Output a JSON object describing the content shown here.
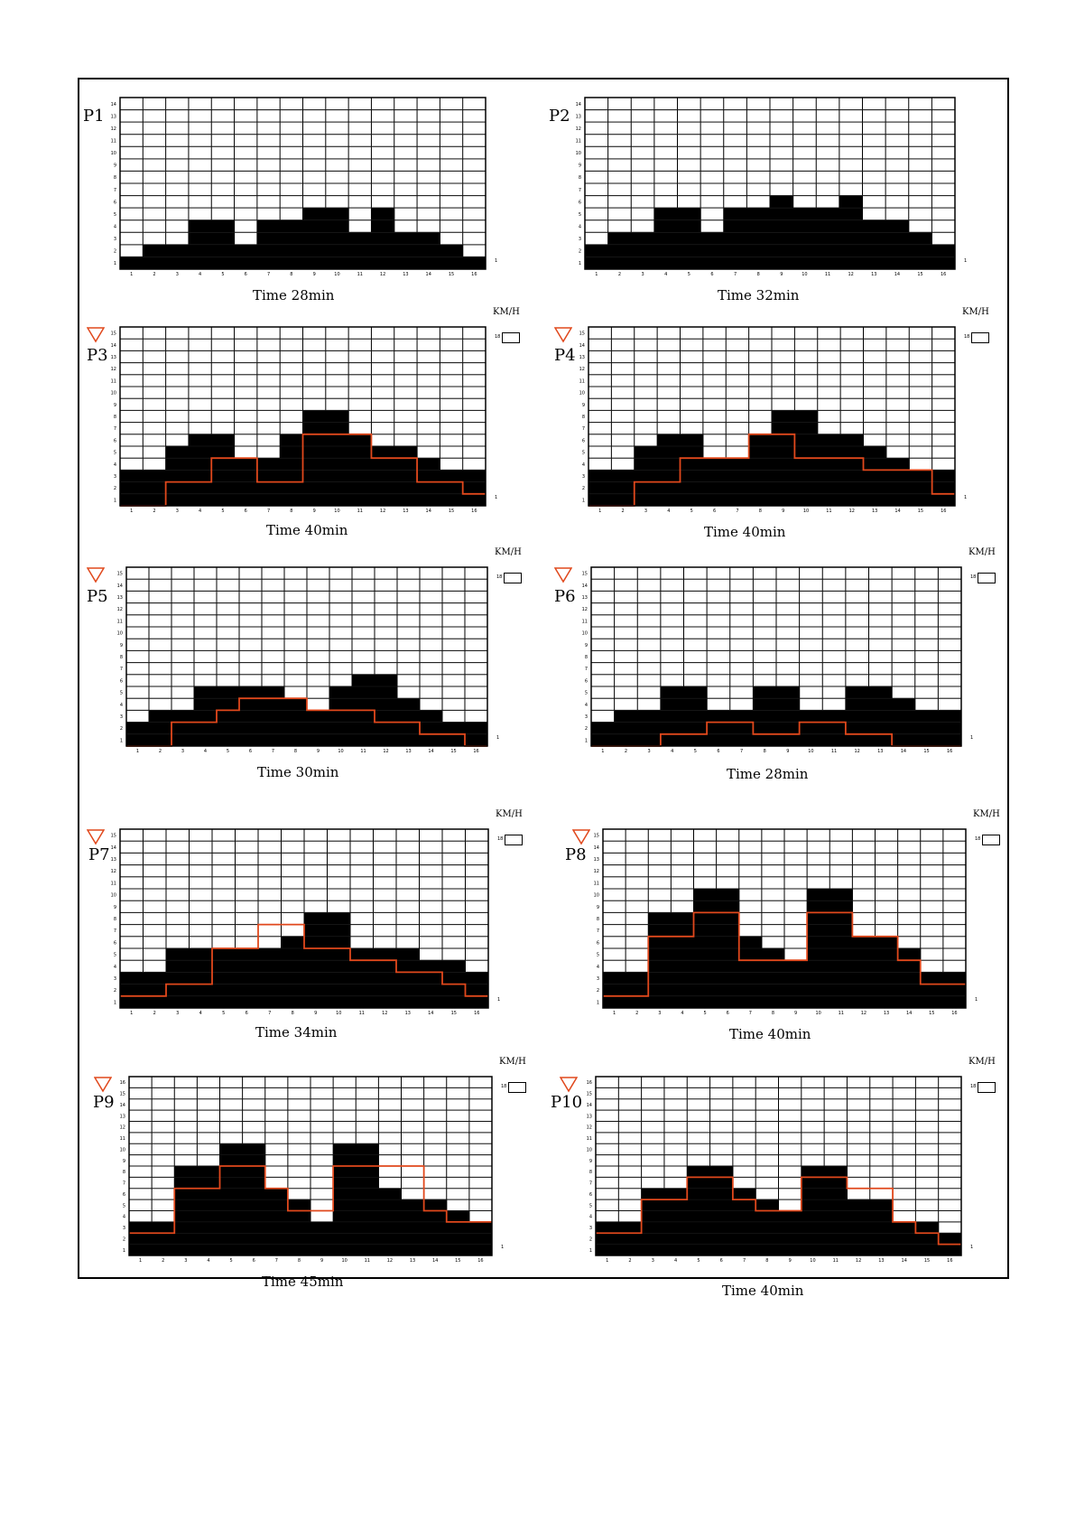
{
  "chart_data": [
    {
      "type": "bar",
      "name": "P1",
      "caption": "Time 28min",
      "ymax": 14,
      "x": [
        "1",
        "2",
        "3",
        "4",
        "5",
        "6",
        "7",
        "8",
        "9",
        "10",
        "11",
        "12",
        "13",
        "14",
        "15",
        "16"
      ],
      "values": [
        1,
        2,
        2,
        4,
        4,
        2,
        4,
        4,
        5,
        5,
        3,
        5,
        3,
        3,
        2,
        1
      ],
      "line": null,
      "show_kmh": false
    },
    {
      "type": "bar",
      "name": "P2",
      "caption": "Time 32min",
      "ymax": 14,
      "x": [
        "1",
        "2",
        "3",
        "4",
        "5",
        "6",
        "7",
        "8",
        "9",
        "10",
        "11",
        "12",
        "13",
        "14",
        "15",
        "16"
      ],
      "values": [
        2,
        3,
        3,
        5,
        5,
        3,
        5,
        5,
        6,
        5,
        5,
        6,
        4,
        4,
        3,
        2
      ],
      "line": null,
      "show_kmh": false
    },
    {
      "type": "bar",
      "name": "P3",
      "caption": "Time 40min",
      "ymax": 15,
      "x": [
        "1",
        "2",
        "3",
        "4",
        "5",
        "6",
        "7",
        "8",
        "9",
        "10",
        "11",
        "12",
        "13",
        "14",
        "15",
        "16"
      ],
      "values": [
        3,
        3,
        5,
        6,
        6,
        4,
        4,
        6,
        8,
        8,
        6,
        5,
        5,
        4,
        3,
        3
      ],
      "line": [
        0,
        0,
        2,
        2,
        4,
        4,
        2,
        2,
        6,
        6,
        6,
        4,
        4,
        2,
        2,
        1
      ],
      "show_kmh": true,
      "speed_max": "18"
    },
    {
      "type": "bar",
      "name": "P4",
      "caption": "Time 40min",
      "ymax": 15,
      "x": [
        "1",
        "2",
        "3",
        "4",
        "5",
        "6",
        "7",
        "8",
        "9",
        "10",
        "11",
        "12",
        "13",
        "14",
        "15",
        "16"
      ],
      "values": [
        3,
        3,
        5,
        6,
        6,
        4,
        4,
        6,
        8,
        8,
        6,
        6,
        5,
        4,
        3,
        3
      ],
      "line": [
        0,
        0,
        2,
        2,
        4,
        4,
        4,
        6,
        6,
        4,
        4,
        4,
        3,
        3,
        3,
        1
      ],
      "show_kmh": true,
      "speed_max": "18"
    },
    {
      "type": "bar",
      "name": "P5",
      "caption": "Time 30min",
      "ymax": 15,
      "x": [
        "1",
        "2",
        "3",
        "4",
        "5",
        "6",
        "7",
        "8",
        "9",
        "10",
        "11",
        "12",
        "13",
        "14",
        "15",
        "16"
      ],
      "values": [
        2,
        3,
        3,
        5,
        5,
        5,
        5,
        4,
        3,
        5,
        6,
        6,
        4,
        3,
        2,
        2
      ],
      "line": [
        0,
        0,
        2,
        2,
        3,
        4,
        4,
        4,
        3,
        3,
        3,
        2,
        2,
        1,
        1,
        0
      ],
      "show_kmh": true,
      "speed_max": "18"
    },
    {
      "type": "bar",
      "name": "P6",
      "caption": "Time 28min",
      "ymax": 15,
      "x": [
        "1",
        "2",
        "3",
        "4",
        "5",
        "6",
        "7",
        "8",
        "9",
        "10",
        "11",
        "12",
        "13",
        "14",
        "15",
        "16"
      ],
      "values": [
        2,
        3,
        3,
        5,
        5,
        3,
        3,
        5,
        5,
        3,
        3,
        5,
        5,
        4,
        3,
        3
      ],
      "line": [
        0,
        0,
        0,
        1,
        1,
        2,
        2,
        1,
        1,
        2,
        2,
        1,
        1,
        0,
        0,
        0
      ],
      "show_kmh": true,
      "speed_max": "18"
    },
    {
      "type": "bar",
      "name": "P7",
      "caption": "Time 34min",
      "ymax": 15,
      "x": [
        "1",
        "2",
        "3",
        "4",
        "5",
        "6",
        "7",
        "8",
        "9",
        "10",
        "11",
        "12",
        "13",
        "14",
        "15",
        "16"
      ],
      "values": [
        3,
        3,
        5,
        5,
        5,
        5,
        5,
        6,
        8,
        8,
        5,
        5,
        5,
        4,
        4,
        3
      ],
      "line": [
        1,
        1,
        2,
        2,
        5,
        5,
        7,
        7,
        5,
        5,
        4,
        4,
        3,
        3,
        2,
        1
      ],
      "show_kmh": true,
      "speed_max": "18"
    },
    {
      "type": "bar",
      "name": "P8",
      "caption": "Time 40min",
      "ymax": 15,
      "x": [
        "1",
        "2",
        "3",
        "4",
        "5",
        "6",
        "7",
        "8",
        "9",
        "10",
        "11",
        "12",
        "13",
        "14",
        "15",
        "16"
      ],
      "values": [
        3,
        3,
        8,
        8,
        10,
        10,
        6,
        5,
        4,
        10,
        10,
        6,
        6,
        5,
        3,
        3
      ],
      "line": [
        1,
        1,
        6,
        6,
        8,
        8,
        4,
        4,
        4,
        8,
        8,
        6,
        6,
        4,
        2,
        2
      ],
      "show_kmh": true,
      "speed_max": "18",
      "kmh_label": "KM/H"
    },
    {
      "type": "bar",
      "name": "P9",
      "caption": "Time 45min",
      "ymax": 16,
      "x": [
        "1",
        "2",
        "3",
        "4",
        "5",
        "6",
        "7",
        "8",
        "9",
        "10",
        "11",
        "12",
        "13",
        "14",
        "15",
        "16"
      ],
      "values": [
        3,
        3,
        8,
        8,
        10,
        10,
        6,
        5,
        3,
        10,
        10,
        6,
        5,
        5,
        4,
        3
      ],
      "line": [
        2,
        2,
        6,
        6,
        8,
        8,
        6,
        4,
        4,
        8,
        8,
        8,
        8,
        4,
        3,
        3
      ],
      "show_kmh": true,
      "speed_max": "18"
    },
    {
      "type": "bar",
      "name": "P10",
      "caption": "Time 40min",
      "ymax": 16,
      "x": [
        "1",
        "2",
        "3",
        "4",
        "5",
        "6",
        "7",
        "8",
        "9",
        "10",
        "11",
        "12",
        "13",
        "14",
        "15",
        "16"
      ],
      "values": [
        3,
        3,
        6,
        6,
        8,
        8,
        6,
        5,
        4,
        8,
        8,
        5,
        5,
        3,
        3,
        2
      ],
      "line": [
        2,
        2,
        5,
        5,
        7,
        7,
        5,
        4,
        4,
        7,
        7,
        6,
        6,
        3,
        2,
        1
      ],
      "show_kmh": true,
      "speed_max": "18"
    }
  ],
  "kmh_label": "KM/H",
  "p8_kmh_label": "KM/H",
  "side_label": "1",
  "colors": {
    "bar": "#000000",
    "line": "#e0481c",
    "grid": "#000000",
    "triangle": "#e0481c"
  }
}
